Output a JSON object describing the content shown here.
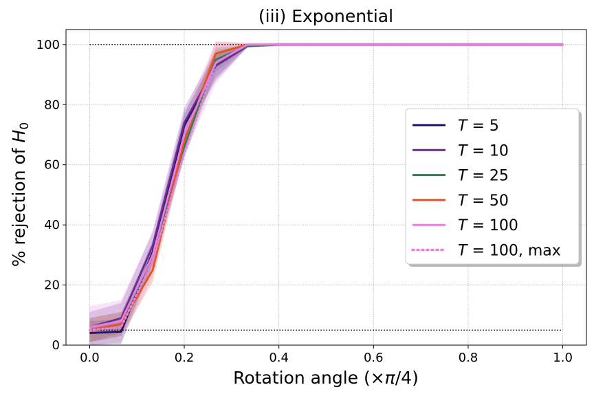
{
  "chart_data": {
    "type": "line",
    "title": "(iii) Exponential",
    "xlabel": "Rotation angle (×π/4)",
    "ylabel": "% rejection of H₀",
    "xlim": [
      -0.05,
      1.05
    ],
    "ylim": [
      0,
      105
    ],
    "xticks": [
      "0.0",
      "0.2",
      "0.4",
      "0.6",
      "0.8",
      "1.0"
    ],
    "yticks": [
      "0",
      "20",
      "40",
      "60",
      "80",
      "100"
    ],
    "grid": true,
    "legend_position": "center-right",
    "reference_lines": [
      {
        "y": 100,
        "style": "dotted",
        "color": "#000000"
      },
      {
        "y": 5,
        "style": "dotted",
        "color": "#000000"
      }
    ],
    "x": [
      0.0,
      0.0667,
      0.1333,
      0.2,
      0.2667,
      0.3333,
      0.4,
      0.4667,
      0.5333,
      0.6,
      0.6667,
      0.7333,
      0.8,
      0.8667,
      0.9333,
      1.0
    ],
    "series": [
      {
        "name": "T = 5",
        "color": "#1b1464",
        "style": "solid",
        "values": [
          4,
          4.5,
          31,
          73,
          93,
          99.5,
          100,
          100,
          100,
          100,
          100,
          100,
          100,
          100,
          100,
          100
        ],
        "band": 4
      },
      {
        "name": "T = 10",
        "color": "#6a2c91",
        "style": "solid",
        "values": [
          6,
          9,
          33,
          74,
          93,
          99.5,
          100,
          100,
          100,
          100,
          100,
          100,
          100,
          100,
          100,
          100
        ],
        "band": 5
      },
      {
        "name": "T = 25",
        "color": "#2e7d4f",
        "style": "solid",
        "values": [
          5,
          7,
          30,
          66,
          95,
          99.5,
          100,
          100,
          100,
          100,
          100,
          100,
          100,
          100,
          100,
          100
        ],
        "band": 4
      },
      {
        "name": "T = 50",
        "color": "#e8501e",
        "style": "solid",
        "values": [
          5,
          7,
          25,
          68,
          97,
          100,
          100,
          100,
          100,
          100,
          100,
          100,
          100,
          100,
          100,
          100
        ],
        "band": 4
      },
      {
        "name": "T = 100",
        "color": "#e57fe0",
        "style": "solid",
        "values": [
          6,
          8,
          30,
          70,
          94,
          100,
          100,
          100,
          100,
          100,
          100,
          100,
          100,
          100,
          100,
          100
        ],
        "band": 7
      },
      {
        "name": "T = 100, max",
        "color": "#e57fe0",
        "style": "dotted",
        "values": [
          5,
          6,
          28,
          64,
          94,
          100,
          100,
          100,
          100,
          100,
          100,
          100,
          100,
          100,
          100,
          100
        ],
        "band": 0
      }
    ]
  }
}
